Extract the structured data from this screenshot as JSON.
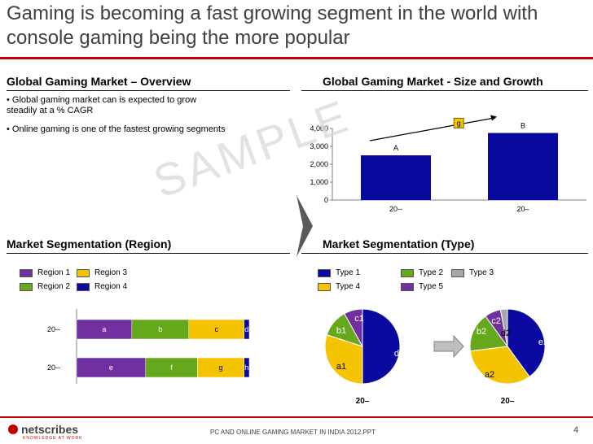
{
  "title": "Gaming is becoming a fast growing segment in the world with console gaming being the more popular",
  "overview": {
    "heading": "Global Gaming Market – Overview",
    "bullets": [
      "• Global gaming market can is expected to grow steadily at  a % CAGR",
      "• Online gaming is one of the fastest growing segments"
    ]
  },
  "watermark": "SAMPLE",
  "footer": {
    "logo": "netscribes",
    "logo_tagline": "KNOWLEDGE AT WORK",
    "source": "PC AND ONLINE GAMING MARKET IN INDIA 2012.PPT",
    "page_number": "4"
  },
  "colors": {
    "accent": "#c00000",
    "blue": "#0a0aa0",
    "green": "#66a81c",
    "yellow": "#f5c400",
    "purple": "#7030a0",
    "gray": "#a6a6a6"
  },
  "chart_data": [
    {
      "id": "size_growth",
      "type": "bar",
      "title": "Global Gaming Market - Size and Growth",
      "categories": [
        "20--",
        "20–"
      ],
      "values": [
        2500,
        3750
      ],
      "data_labels": [
        "A",
        "B"
      ],
      "ylim": [
        0,
        4000
      ],
      "yticks": [
        0,
        1000,
        2000,
        3000,
        4000
      ],
      "ytick_labels": [
        "0",
        "1,000",
        "2,000",
        "3,000",
        "4,000"
      ],
      "growth_label": "g",
      "grid": false
    },
    {
      "id": "region",
      "type": "bar",
      "orientation": "horizontal-stacked-100",
      "title": "Market Segmentation (Region)",
      "categories": [
        "20--",
        "20--"
      ],
      "series": [
        {
          "name": "Region 1",
          "color": "#7030a0",
          "values": [
            32,
            40
          ],
          "labels": [
            "a",
            "e"
          ]
        },
        {
          "name": "Region 2",
          "color": "#66a81c",
          "values": [
            33,
            30
          ],
          "labels": [
            "b",
            "f"
          ]
        },
        {
          "name": "Region 3",
          "color": "#f5c400",
          "values": [
            32,
            27
          ],
          "labels": [
            "c",
            "g"
          ]
        },
        {
          "name": "Region 4",
          "color": "#0a0aa0",
          "values": [
            3,
            3
          ],
          "labels": [
            "d",
            "h"
          ]
        }
      ]
    },
    {
      "id": "type",
      "type": "pie",
      "title": "Market Segmentation (Type)",
      "legend": [
        {
          "name": "Type 1",
          "color": "#0a0aa0"
        },
        {
          "name": "Type 2",
          "color": "#66a81c"
        },
        {
          "name": "Type 3",
          "color": "#a6a6a6"
        },
        {
          "name": "Type 4",
          "color": "#f5c400"
        },
        {
          "name": "Type 5",
          "color": "#7030a0"
        }
      ],
      "pies": [
        {
          "label": "20–",
          "slices": [
            {
              "series": "Type 1",
              "value": 50,
              "label": "d1"
            },
            {
              "series": "Type 4",
              "value": 30,
              "label": "a1"
            },
            {
              "series": "Type 2",
              "value": 12,
              "label": "b1"
            },
            {
              "series": "Type 5",
              "value": 8,
              "label": "c1"
            }
          ]
        },
        {
          "label": "20–",
          "slices": [
            {
              "series": "Type 1",
              "value": 40,
              "label": "e2"
            },
            {
              "series": "Type 4",
              "value": 33,
              "label": "a2"
            },
            {
              "series": "Type 2",
              "value": 17,
              "label": "b2"
            },
            {
              "series": "Type 5",
              "value": 7,
              "label": "c2"
            },
            {
              "series": "Type 3",
              "value": 3,
              "label": "d2"
            }
          ]
        }
      ]
    }
  ]
}
